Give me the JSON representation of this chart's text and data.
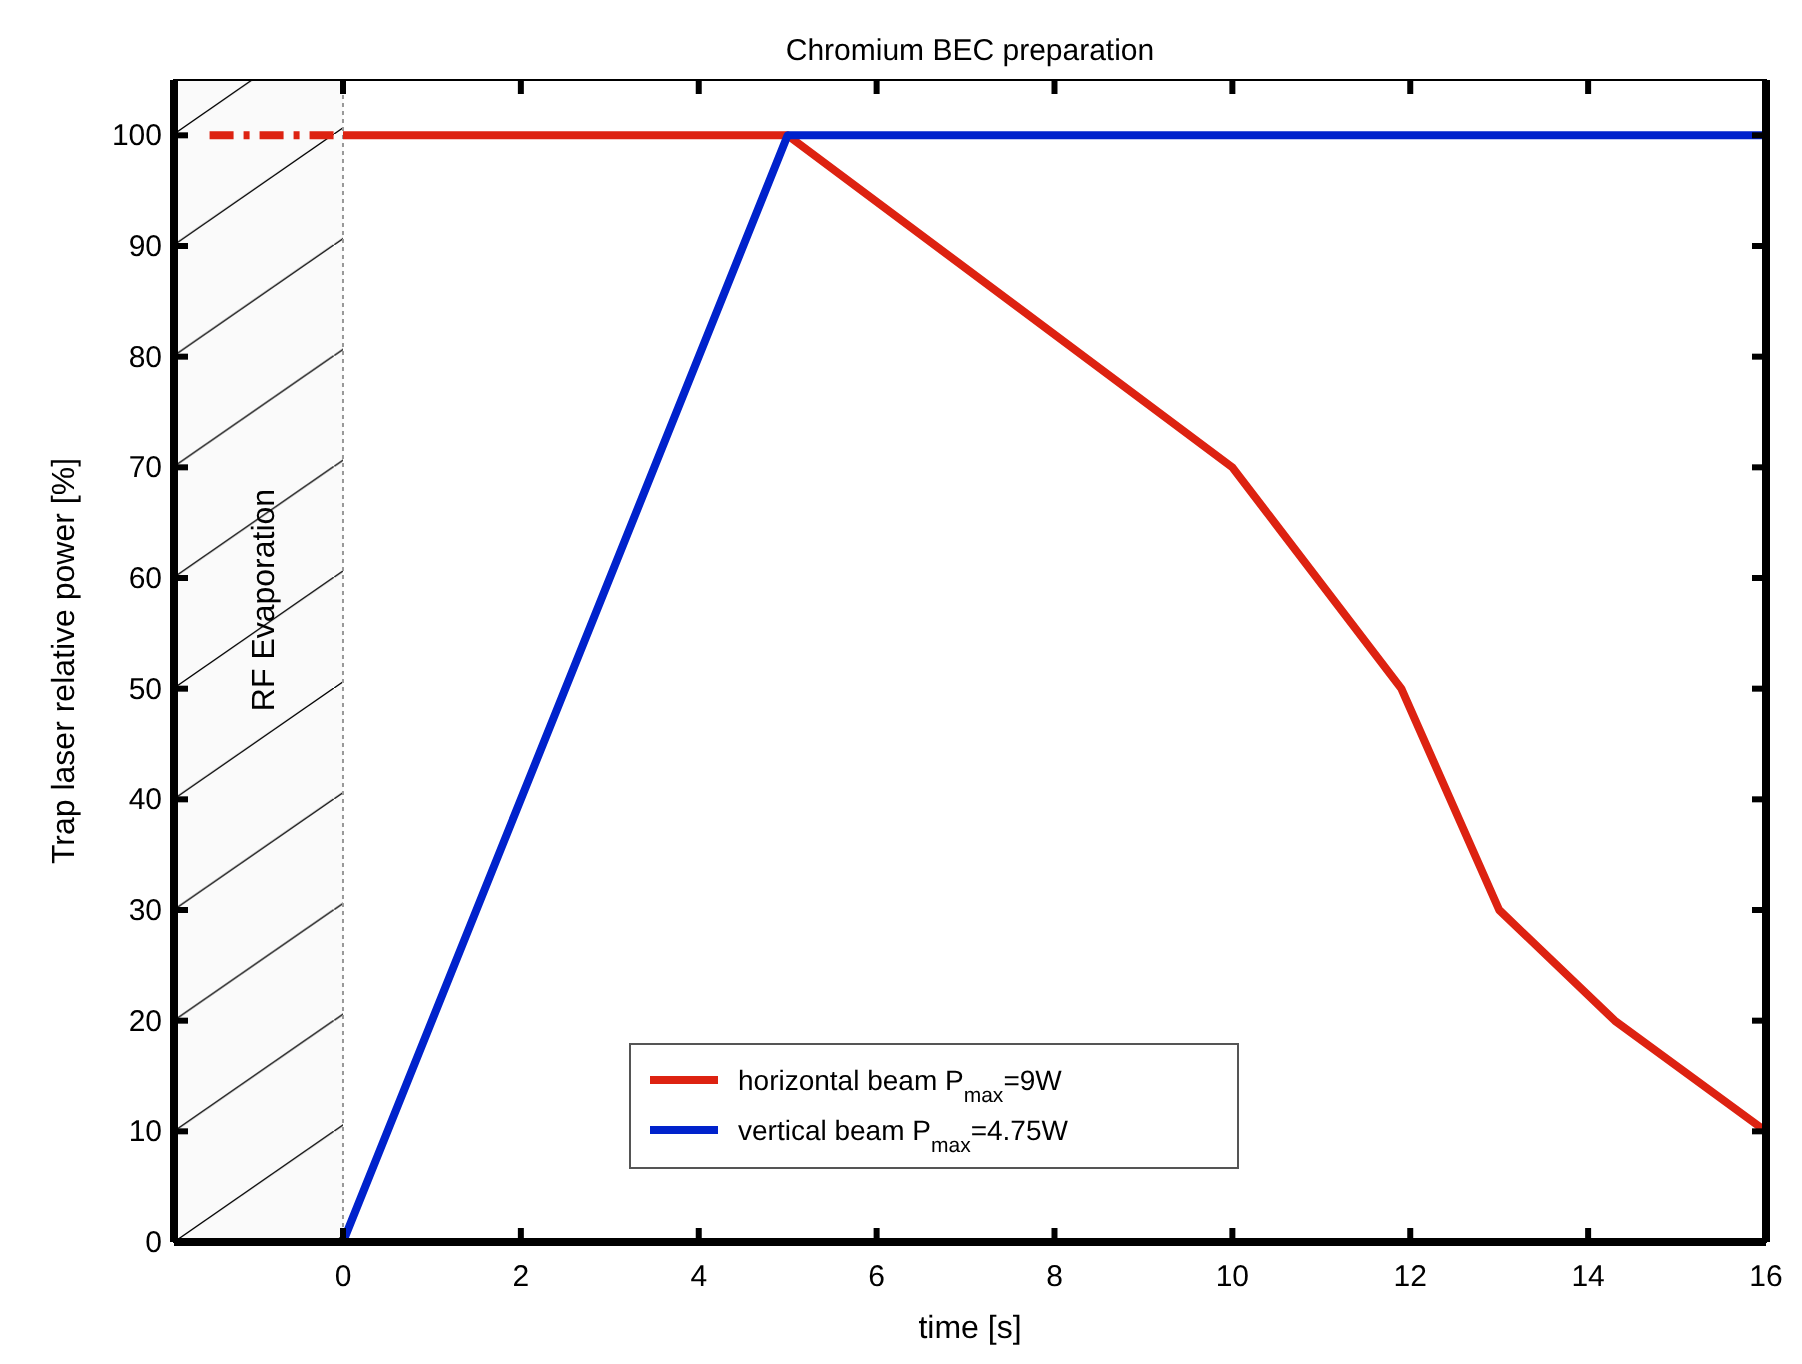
{
  "chart_data": {
    "type": "line",
    "title": "Chromium BEC preparation",
    "xlabel": "time [s]",
    "ylabel": "Trap laser relative  power [%]",
    "xlim": [
      -1.9,
      16
    ],
    "xticks": [
      0,
      2,
      4,
      6,
      8,
      10,
      12,
      14,
      16
    ],
    "ylim": [
      0,
      105
    ],
    "yticks": [
      0,
      10,
      20,
      30,
      40,
      50,
      60,
      70,
      80,
      90,
      100
    ],
    "grid": false,
    "legend": "bottom",
    "line_style": "solid",
    "marker": "none",
    "bands": [
      {
        "axis": "x",
        "from": -1.9,
        "to": 0,
        "label": "RF Evaporation"
      }
    ],
    "series": [
      {
        "name": "horizontal beam P$_{max}$=9W",
        "color": "#dd2211",
        "x": [
          0,
          5,
          10,
          11.9,
          13,
          14.3,
          16
        ],
        "values": [
          100,
          100,
          70,
          50,
          30,
          20,
          10
        ]
      },
      {
        "name": "vertical beam P$_{max}$=4.75W",
        "color": "#0022cc",
        "x": [
          0,
          5,
          16
        ],
        "values": [
          0,
          100,
          100
        ]
      },
      {
        "color": "#dd2211",
        "x": [
          -1.5,
          0
        ],
        "values": [
          100,
          100
        ],
        "line_style": "dashed"
      }
    ]
  }
}
